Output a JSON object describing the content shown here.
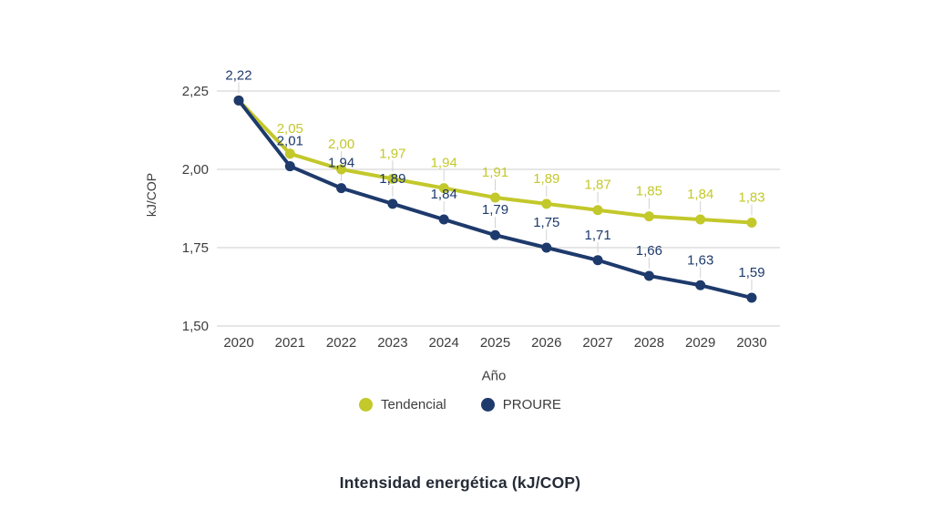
{
  "chart_data": {
    "type": "line",
    "title": "Intensidad energética (kJ/COP)",
    "xlabel": "Año",
    "ylabel": "kJ/COP",
    "x": [
      2020,
      2021,
      2022,
      2023,
      2024,
      2025,
      2026,
      2027,
      2028,
      2029,
      2030
    ],
    "series": [
      {
        "name": "Tendencial",
        "color": "#c3c82b",
        "values": [
          2.22,
          2.05,
          2.0,
          1.97,
          1.94,
          1.91,
          1.89,
          1.87,
          1.85,
          1.84,
          1.83
        ],
        "skip_first_label": true
      },
      {
        "name": "PROURE",
        "color": "#1e3a6c",
        "values": [
          2.22,
          2.01,
          1.94,
          1.89,
          1.84,
          1.79,
          1.75,
          1.71,
          1.66,
          1.63,
          1.59
        ],
        "skip_first_label": false
      }
    ],
    "yticks": [
      1.5,
      1.75,
      2.0,
      2.25
    ],
    "ytick_labels": [
      "1,50",
      "1,75",
      "2,00",
      "2,25"
    ],
    "ylim": [
      1.5,
      2.25
    ],
    "grid": "horizontal",
    "gridline_color": "#d7d7d7",
    "tick_color": "#3d3d3d",
    "legend_position": "bottom",
    "decimal_separator": ","
  }
}
